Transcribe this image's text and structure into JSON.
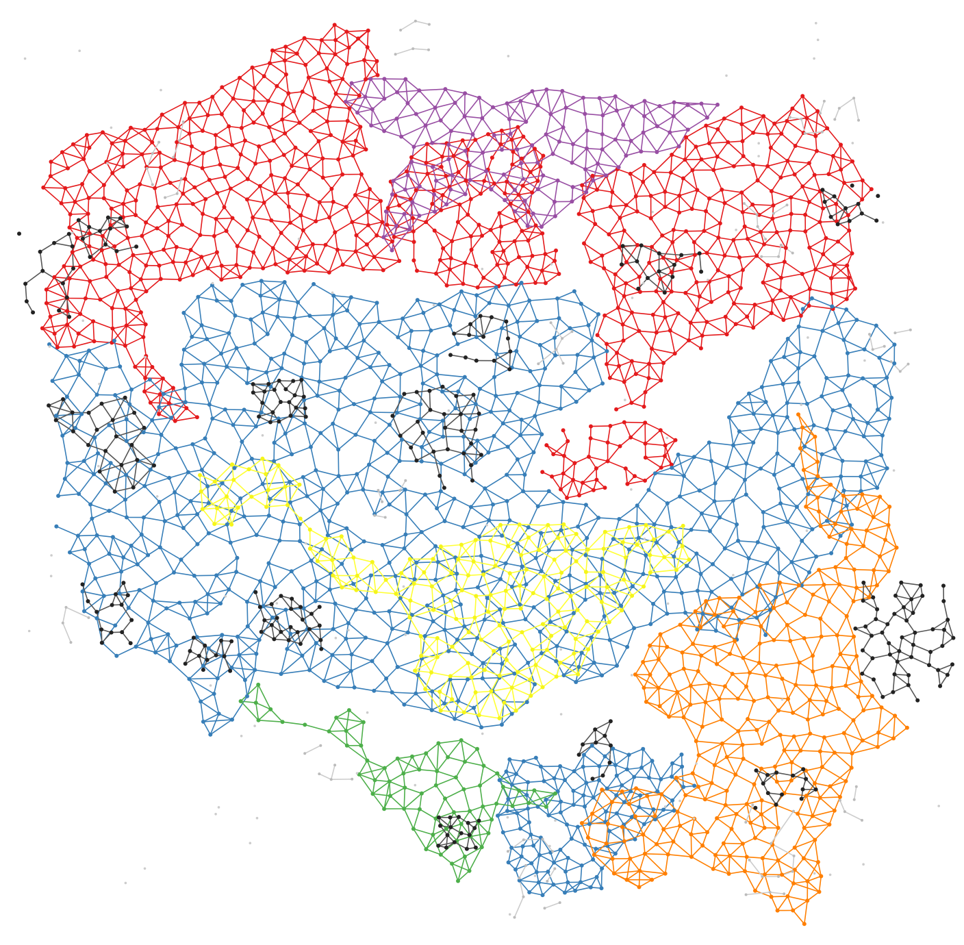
{
  "figure": {
    "background": "#ffffff",
    "description_visible_text": ""
  },
  "clusters": [
    {
      "name": "red",
      "color": "#e41a1c",
      "edge_color": "#e41a1c"
    },
    {
      "name": "purple",
      "color": "#984ea3",
      "edge_color": "#984ea3"
    },
    {
      "name": "blue",
      "color": "#377eb8",
      "edge_color": "#377eb8"
    },
    {
      "name": "yellow",
      "color": "#f5f51a",
      "edge_color": "#ffff33"
    },
    {
      "name": "orange",
      "color": "#ff7f00",
      "edge_color": "#ff7f00"
    },
    {
      "name": "green",
      "color": "#4daf4a",
      "edge_color": "#4daf4a"
    },
    {
      "name": "black",
      "color": "#222222",
      "edge_color": "#555555"
    },
    {
      "name": "grey",
      "color": "#bbbbbb",
      "edge_color": "#cccccc"
    }
  ]
}
